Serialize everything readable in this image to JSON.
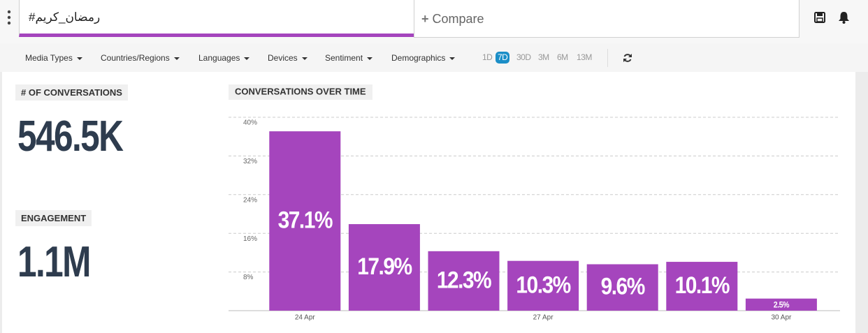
{
  "search": {
    "query": "#رمضان_كريم",
    "compare": "Compare"
  },
  "filters": [
    "Media Types",
    "Countries/Regions",
    "Languages",
    "Devices",
    "Sentiment",
    "Demographics"
  ],
  "time_ranges": {
    "options": [
      "1D",
      "7D",
      "30D",
      "3M",
      "6M",
      "13M"
    ],
    "selected": 1
  },
  "metrics": [
    {
      "label": "# OF CONVERSATIONS",
      "value": "546.5K"
    },
    {
      "label": "ENGAGEMENT",
      "value": "1.1M"
    }
  ],
  "chart_data": {
    "type": "bar",
    "title": "CONVERSATIONS OVER TIME",
    "categories": [
      "24 Apr",
      null,
      null,
      "27 Apr",
      null,
      null,
      "30 Apr"
    ],
    "values": [
      37.1,
      17.9,
      12.3,
      10.3,
      9.6,
      10.1,
      2.5
    ],
    "value_labels": [
      "37.1%",
      "17.9%",
      "12.3%",
      "10.3%",
      "9.6%",
      "10.1%",
      "2.5%"
    ],
    "color": "#a545bd",
    "ylim": [
      0,
      40
    ],
    "yticks": [
      {
        "value": 8,
        "label": "8%"
      },
      {
        "value": 16,
        "label": "16%"
      },
      {
        "value": 24,
        "label": "24%"
      },
      {
        "value": 32,
        "label": "32%"
      },
      {
        "value": 40,
        "label": "40%"
      }
    ],
    "grid": true
  }
}
